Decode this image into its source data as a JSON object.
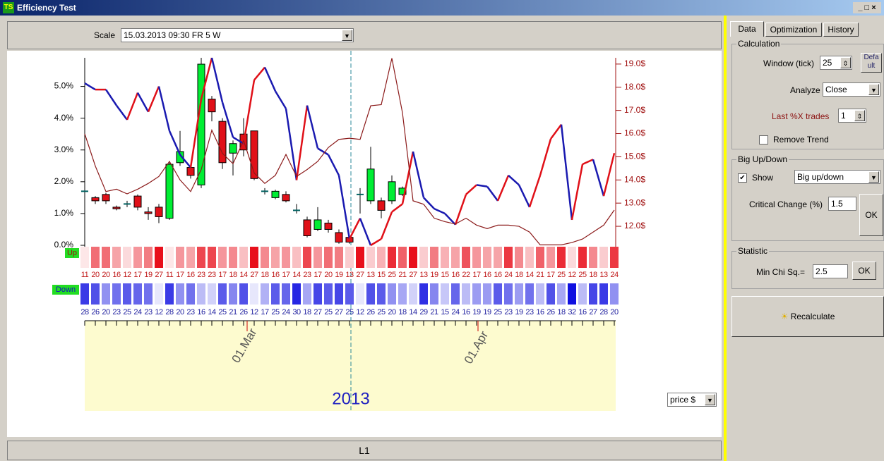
{
  "window": {
    "title": "Efficiency Test"
  },
  "toolbar": {
    "scale_label": "Scale",
    "scale_value": "15.03.2013  09:30 FR  5 W"
  },
  "chart_data": {
    "type": "candlestick",
    "ylim": [
      0,
      5.9
    ],
    "yticks": [
      {
        "value": 0,
        "label": "0.0%"
      },
      {
        "value": 1,
        "label": "1.0%"
      },
      {
        "value": 2,
        "label": "2.0%"
      },
      {
        "value": 3,
        "label": "3.0%"
      },
      {
        "value": 4,
        "label": "4.0%"
      },
      {
        "value": 5,
        "label": "5.0%"
      }
    ],
    "y2lim": [
      11.18,
      19.27
    ],
    "y2ticks": [
      {
        "value": 12,
        "label": "12.0$"
      },
      {
        "value": 13,
        "label": "13.0$"
      },
      {
        "value": 14,
        "label": "14.0$"
      },
      {
        "value": 15,
        "label": "15.0$"
      },
      {
        "value": 16,
        "label": "16.0$"
      },
      {
        "value": 17,
        "label": "17.0$"
      },
      {
        "value": 18,
        "label": "18.0$"
      },
      {
        "value": 19,
        "label": "19.0$"
      }
    ],
    "candles": {
      "up_color": "#00ee33",
      "down_color": "#e01018",
      "flat_color": "#006060",
      "open": [
        1.7,
        1.5,
        1.6,
        1.2,
        1.3,
        1.55,
        1.05,
        1.2,
        0.85,
        2.6,
        2.45,
        1.9,
        4.6,
        3.9,
        2.9,
        3.5,
        3.6,
        1.7,
        1.5,
        1.6,
        1.1,
        0.8,
        0.5,
        0.7,
        0.4,
        0.25,
        1.6,
        1.4,
        1.4,
        1.4,
        1.6
      ],
      "close": [
        1.7,
        1.4,
        1.4,
        1.15,
        1.3,
        1.2,
        1.0,
        0.9,
        2.55,
        2.95,
        2.2,
        5.7,
        4.2,
        2.6,
        3.2,
        3.0,
        2.1,
        1.7,
        1.7,
        1.4,
        1.1,
        0.3,
        0.8,
        0.5,
        0.1,
        0.1,
        1.6,
        2.4,
        1.1,
        2.0,
        1.8
      ],
      "high": [
        2.3,
        1.55,
        1.65,
        1.25,
        1.4,
        1.6,
        1.2,
        1.3,
        2.6,
        3.6,
        2.5,
        5.9,
        4.7,
        4.0,
        3.3,
        4.0,
        3.6,
        1.8,
        1.75,
        1.7,
        1.3,
        0.9,
        1.2,
        0.8,
        0.5,
        0.3,
        1.8,
        3.1,
        1.5,
        2.2,
        1.85
      ],
      "low": [
        1.6,
        1.3,
        1.3,
        1.1,
        1.2,
        1.1,
        0.8,
        0.7,
        0.8,
        2.5,
        2.1,
        1.8,
        3.9,
        2.4,
        2.2,
        2.8,
        2.05,
        1.6,
        1.45,
        1.35,
        1.0,
        0.25,
        0.45,
        0.4,
        0.05,
        0.05,
        1.0,
        1.3,
        0.85,
        1.3,
        1.55
      ]
    },
    "series": [
      {
        "up_color": "#e01018",
        "down_color": "#1a1ab0",
        "values": [
          5.1,
          4.9,
          4.9,
          4.4,
          3.95,
          4.8,
          4.2,
          5.0,
          3.6,
          2.85,
          2.45,
          4.6,
          5.9,
          4.5,
          3.4,
          3.2,
          5.2,
          5.6,
          4.85,
          4.3,
          2.05,
          4.4,
          3.05,
          2.85,
          2.2,
          0.2,
          0.85,
          0,
          0.2,
          1.05,
          1.3,
          2.95,
          1.5,
          1.15,
          1.0,
          0.65,
          1.6,
          1.9,
          1.85,
          1.4,
          2.2,
          1.9,
          1.2,
          2.2,
          3.35,
          3.8,
          0.8,
          2.55,
          2.7,
          1.55,
          2.9
        ]
      },
      {
        "color": "#8b1a1a",
        "axis": "y2",
        "values": [
          15.99,
          14.6,
          13.5,
          13.6,
          13.4,
          13.6,
          13.85,
          14.15,
          14.8,
          14.0,
          13.5,
          14.45,
          16.15,
          15.15,
          14.7,
          15.7,
          14.3,
          13.85,
          14.2,
          15.1,
          14.15,
          14.45,
          14.8,
          15.4,
          15.75,
          15.8,
          15.75,
          17.2,
          17.25,
          19.25,
          16.9,
          13.1,
          12.95,
          12.35,
          12.2,
          12.1,
          12.35,
          12.05,
          11.9,
          12.05,
          12.05,
          12.0,
          11.75,
          11.2,
          11.2,
          11.2,
          11.3,
          11.45,
          11.75,
          12.05,
          12.7
        ]
      }
    ],
    "up_row": {
      "label": "Up",
      "color": "#e8101c",
      "values": [
        11,
        20,
        20,
        16,
        12,
        17,
        19,
        27,
        11,
        17,
        16,
        23,
        23,
        17,
        18,
        14,
        27,
        18,
        16,
        17,
        14,
        23,
        17,
        20,
        19,
        13,
        27,
        13,
        15,
        25,
        21,
        27,
        13,
        19,
        15,
        16,
        22,
        17,
        16,
        16,
        24,
        18,
        14,
        21,
        17,
        25,
        12,
        25,
        18,
        13,
        24
      ]
    },
    "down_row": {
      "label": "Down",
      "color": "#1010e0",
      "values": [
        28,
        26,
        20,
        23,
        25,
        24,
        23,
        12,
        28,
        20,
        23,
        16,
        14,
        25,
        21,
        26,
        12,
        17,
        25,
        24,
        30,
        18,
        27,
        25,
        27,
        25,
        12,
        26,
        25,
        20,
        18,
        14,
        29,
        21,
        15,
        24,
        16,
        19,
        19,
        25,
        23,
        19,
        23,
        16,
        26,
        18,
        32,
        16,
        27,
        28,
        20
      ]
    },
    "time_labels": [
      "01.Mar",
      "01.Apr"
    ],
    "year": "2013"
  },
  "scale_select": "price $",
  "status": "L1",
  "panel": {
    "tabs": [
      "Data",
      "Optimization",
      "History"
    ],
    "calculation": {
      "title": "Calculation",
      "window_label": "Window (tick)",
      "window_value": "25",
      "default_button": "Defa ult",
      "analyze_label": "Analyze",
      "analyze_value": "Close",
      "last_label": "Last %X trades",
      "last_value": "1",
      "remove_trend": "Remove Trend"
    },
    "big": {
      "title": "Big Up/Down",
      "show": "Show",
      "mode": "Big up/down",
      "critical_label": "Critical Change (%)",
      "critical_value": "1.5",
      "ok": "OK"
    },
    "statistic": {
      "title": "Statistic",
      "chi_label": "Min Chi Sq.=",
      "chi_value": "2.5",
      "ok": "OK"
    },
    "recalculate": "Recalculate"
  }
}
